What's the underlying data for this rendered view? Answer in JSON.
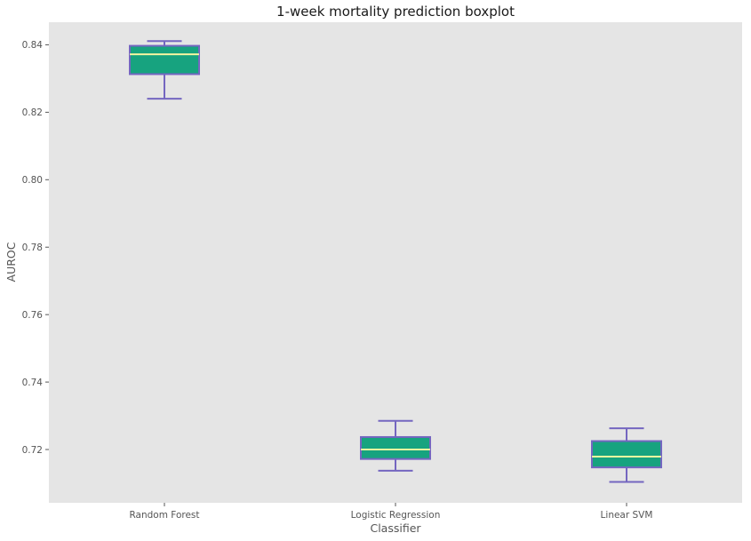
{
  "chart_data": {
    "type": "boxplot",
    "title": "1-week mortality prediction boxplot",
    "xlabel": "Classifier",
    "ylabel": "AUROC",
    "categories": [
      "Random Forest",
      "Logistic Regression",
      "Linear SVM"
    ],
    "boxes": [
      {
        "label": "Random Forest",
        "whisker_low": 0.824,
        "q1": 0.8313,
        "median": 0.8372,
        "q3": 0.8397,
        "whisker_high": 0.8411
      },
      {
        "label": "Logistic Regression",
        "whisker_low": 0.7137,
        "q1": 0.7172,
        "median": 0.72,
        "q3": 0.7237,
        "whisker_high": 0.7285
      },
      {
        "label": "Linear SVM",
        "whisker_low": 0.7104,
        "q1": 0.7147,
        "median": 0.7179,
        "q3": 0.7225,
        "whisker_high": 0.7263
      }
    ],
    "yticks": [
      0.72,
      0.74,
      0.76,
      0.78,
      0.8,
      0.82,
      0.84
    ],
    "ytick_labels": [
      "0.72",
      "0.74",
      "0.76",
      "0.78",
      "0.80",
      "0.82",
      "0.84"
    ],
    "ylim": [
      0.7042,
      0.8467
    ],
    "grid": false,
    "colors": {
      "plot_background": "#e5e5e5",
      "box_fill": "#17a37f",
      "box_edge": "#7466c0",
      "median": "#f5f5a0",
      "whisker": "#7466c0"
    }
  }
}
